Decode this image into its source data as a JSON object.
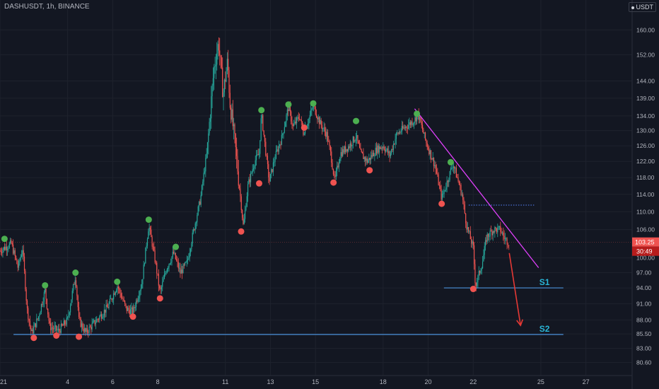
{
  "header": {
    "symbol": "DASHUSDT, 1h, BINANCE",
    "currency_badge": "USDT"
  },
  "chart_data": {
    "type": "candlestick",
    "title": "DASHUSDT, 1h, BINANCE",
    "y_scale": "log",
    "ylim": [
      79.5,
      166
    ],
    "y_ticks": [
      "160.00",
      "152.00",
      "144.00",
      "139.00",
      "134.00",
      "130.00",
      "126.00",
      "122.00",
      "118.00",
      "114.00",
      "110.00",
      "106.00",
      "100.00",
      "97.00",
      "94.00",
      "91.00",
      "88.00",
      "85.50",
      "83.00",
      "80.60"
    ],
    "y_tick_values": [
      160,
      152,
      144,
      139,
      134,
      130,
      126,
      122,
      118,
      114,
      110,
      106,
      100,
      97,
      94,
      91,
      88,
      85.5,
      83,
      80.6
    ],
    "x_ticks": [
      "2021",
      "4",
      "6",
      "8",
      "11",
      "13",
      "15",
      "18",
      "20",
      "22",
      "25",
      "27"
    ],
    "x_tick_days": [
      1,
      4,
      6,
      8,
      11,
      13,
      15,
      18,
      20,
      22,
      25,
      27
    ],
    "xlim_days": [
      1.0,
      28.8
    ],
    "current_price": {
      "label": "103.25",
      "value": 103.25,
      "countdown": "30:49"
    },
    "price_path": [
      [
        1.0,
        101.5
      ],
      [
        1.5,
        103
      ],
      [
        1.8,
        98
      ],
      [
        2.0,
        102
      ],
      [
        2.2,
        90
      ],
      [
        2.4,
        85.5
      ],
      [
        2.7,
        88.5
      ],
      [
        3.0,
        93.5
      ],
      [
        3.2,
        86.8
      ],
      [
        3.6,
        86.0
      ],
      [
        4.0,
        88.0
      ],
      [
        4.35,
        96.5
      ],
      [
        4.5,
        88
      ],
      [
        4.8,
        85.7
      ],
      [
        5.3,
        88
      ],
      [
        5.8,
        90.5
      ],
      [
        6.2,
        94.5
      ],
      [
        6.6,
        90
      ],
      [
        6.9,
        89.5
      ],
      [
        7.3,
        95
      ],
      [
        7.6,
        107
      ],
      [
        7.9,
        99
      ],
      [
        8.1,
        93
      ],
      [
        8.4,
        98
      ],
      [
        8.7,
        101
      ],
      [
        9.0,
        97
      ],
      [
        9.3,
        99
      ],
      [
        9.6,
        106
      ],
      [
        9.9,
        113
      ],
      [
        10.2,
        125
      ],
      [
        10.5,
        148
      ],
      [
        10.7,
        156
      ],
      [
        10.9,
        140
      ],
      [
        11.1,
        150
      ],
      [
        11.2,
        138
      ],
      [
        11.4,
        128
      ],
      [
        11.6,
        117
      ],
      [
        11.8,
        106.5
      ],
      [
        12.0,
        116
      ],
      [
        12.3,
        122
      ],
      [
        12.5,
        124
      ],
      [
        12.6,
        134.5
      ],
      [
        12.8,
        124
      ],
      [
        12.95,
        117
      ],
      [
        13.2,
        123
      ],
      [
        13.5,
        128
      ],
      [
        13.8,
        136.5
      ],
      [
        14.0,
        131
      ],
      [
        14.3,
        134
      ],
      [
        14.45,
        129.5
      ],
      [
        14.7,
        133
      ],
      [
        14.9,
        137
      ],
      [
        15.2,
        132
      ],
      [
        15.5,
        129
      ],
      [
        15.7,
        123
      ],
      [
        15.85,
        117
      ],
      [
        16.1,
        124
      ],
      [
        16.5,
        126
      ],
      [
        16.8,
        128.5
      ],
      [
        17.0,
        124
      ],
      [
        17.3,
        122
      ],
      [
        17.7,
        125
      ],
      [
        18.0,
        126
      ],
      [
        18.3,
        123.5
      ],
      [
        18.6,
        129
      ],
      [
        19.0,
        131
      ],
      [
        19.4,
        133
      ],
      [
        19.55,
        134.5
      ],
      [
        19.9,
        127
      ],
      [
        20.3,
        121
      ],
      [
        20.6,
        113
      ],
      [
        20.9,
        118
      ],
      [
        21.1,
        121.5
      ],
      [
        21.5,
        114
      ],
      [
        21.7,
        107
      ],
      [
        22.0,
        102
      ],
      [
        22.1,
        94.3
      ],
      [
        22.4,
        99
      ],
      [
        22.6,
        104.5
      ],
      [
        22.9,
        106
      ],
      [
        23.2,
        106
      ],
      [
        23.4,
        104
      ],
      [
        23.6,
        103.25
      ]
    ],
    "pivot_highs": [
      {
        "day": 1.2,
        "price": 104.0
      },
      {
        "day": 3.0,
        "price": 94.5
      },
      {
        "day": 4.35,
        "price": 97.0
      },
      {
        "day": 6.2,
        "price": 95.2
      },
      {
        "day": 7.6,
        "price": 108.2
      },
      {
        "day": 8.8,
        "price": 102.3
      },
      {
        "day": 12.6,
        "price": 135.6
      },
      {
        "day": 13.8,
        "price": 137.2
      },
      {
        "day": 14.9,
        "price": 137.5
      },
      {
        "day": 16.8,
        "price": 132.6
      },
      {
        "day": 19.5,
        "price": 134.6
      },
      {
        "day": 21.0,
        "price": 121.8
      }
    ],
    "pivot_lows": [
      {
        "day": 2.5,
        "price": 84.8
      },
      {
        "day": 3.5,
        "price": 85.2
      },
      {
        "day": 4.5,
        "price": 85.0
      },
      {
        "day": 6.9,
        "price": 88.6
      },
      {
        "day": 8.1,
        "price": 92.0
      },
      {
        "day": 11.7,
        "price": 105.6
      },
      {
        "day": 12.5,
        "price": 116.6
      },
      {
        "day": 14.5,
        "price": 130.8
      },
      {
        "day": 15.8,
        "price": 116.8
      },
      {
        "day": 17.4,
        "price": 119.8
      },
      {
        "day": 20.6,
        "price": 111.8
      },
      {
        "day": 22.0,
        "price": 93.8
      }
    ],
    "trendline": {
      "from": {
        "day": 19.4,
        "price": 136.0
      },
      "to": {
        "day": 24.9,
        "price": 98.0
      }
    },
    "resistance_dotted": {
      "from_day": 21.8,
      "to_day": 24.7,
      "price": 111.5
    },
    "support_levels": [
      {
        "label": "S1",
        "price": 94.0,
        "from_day": 20.7,
        "to_day": 26.0
      },
      {
        "label": "S2",
        "price": 85.4,
        "from_day": 1.6,
        "to_day": 26.0
      }
    ],
    "arrow": {
      "from": {
        "day": 23.6,
        "price": 101
      },
      "to": {
        "day": 24.1,
        "price": 87
      }
    },
    "colors": {
      "background": "#131722",
      "up": "#26a69a",
      "down": "#ef5350",
      "pivot_high": "#4caf50",
      "pivot_low": "#ef5350",
      "trendline": "#e040fb",
      "support": "#4a90d9",
      "dotted": "#4a6fd4",
      "arrow": "#e53935",
      "label": "#29b6d8"
    }
  }
}
